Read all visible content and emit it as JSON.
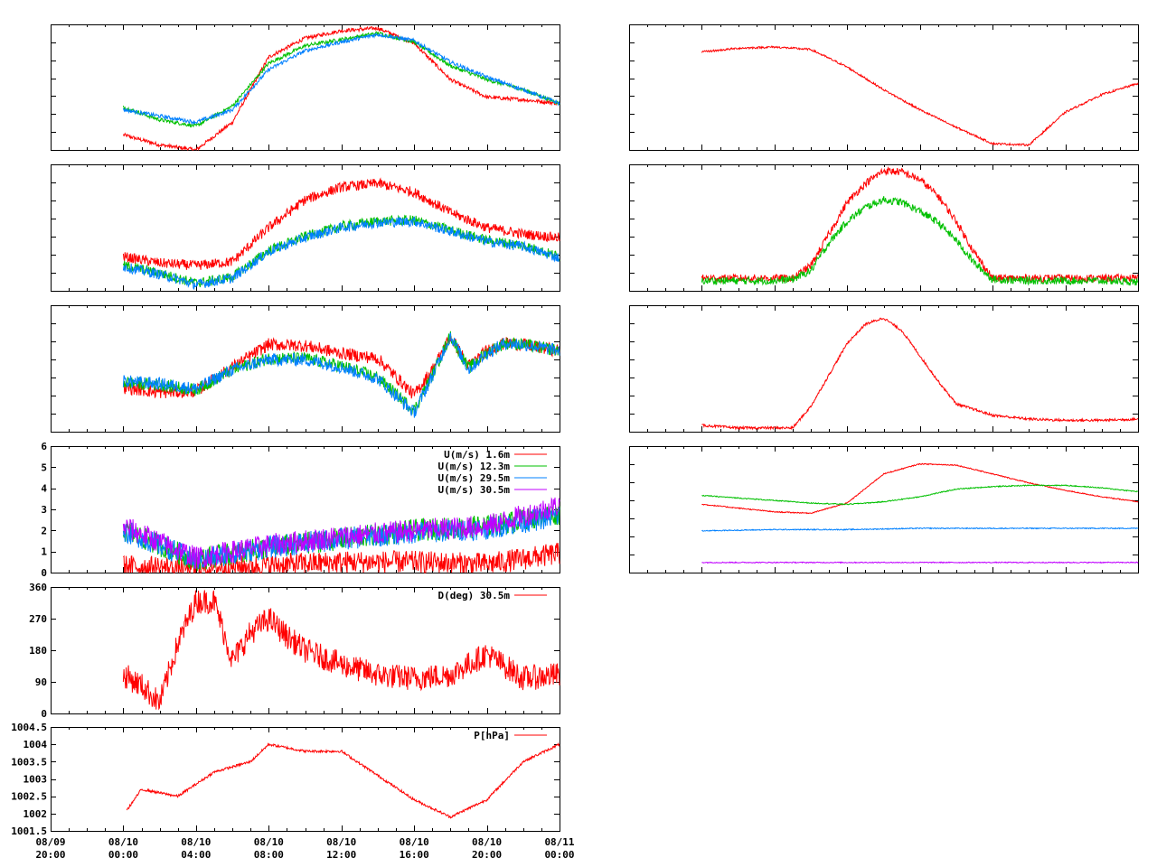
{
  "x_ticks": [
    {
      "d": "08/09",
      "t": "20:00"
    },
    {
      "d": "08/10",
      "t": "00:00"
    },
    {
      "d": "08/10",
      "t": "04:00"
    },
    {
      "d": "08/10",
      "t": "08:00"
    },
    {
      "d": "08/10",
      "t": "12:00"
    },
    {
      "d": "08/10",
      "t": "16:00"
    },
    {
      "d": "08/10",
      "t": "20:00"
    },
    {
      "d": "08/11",
      "t": "00:00"
    }
  ],
  "colors": {
    "red": "#ff0000",
    "green": "#00c000",
    "blue": "#0080ff",
    "purple": "#c000ff"
  },
  "chart_data": [
    {
      "id": "L1",
      "type": "line",
      "x_range": [
        "08/09 20:00",
        "08/11 00:00"
      ],
      "y_labels": [],
      "series": [
        {
          "color": "red",
          "x": [
            4,
            6,
            8,
            10,
            12,
            14,
            16,
            18,
            20,
            22,
            24,
            26,
            28
          ],
          "values": [
            0.12,
            0.04,
            0.0,
            0.22,
            0.74,
            0.89,
            0.95,
            0.97,
            0.85,
            0.56,
            0.42,
            0.4,
            0.37
          ]
        },
        {
          "color": "green",
          "x": [
            4,
            6,
            8,
            10,
            12,
            14,
            16,
            18,
            20,
            22,
            24,
            26,
            28
          ],
          "values": [
            0.34,
            0.24,
            0.19,
            0.35,
            0.69,
            0.83,
            0.88,
            0.93,
            0.86,
            0.67,
            0.56,
            0.48,
            0.37
          ]
        },
        {
          "color": "blue",
          "x": [
            4,
            6,
            8,
            10,
            12,
            14,
            16,
            18,
            20,
            22,
            24,
            26,
            28
          ],
          "values": [
            0.32,
            0.27,
            0.22,
            0.32,
            0.64,
            0.79,
            0.86,
            0.92,
            0.87,
            0.7,
            0.58,
            0.48,
            0.37
          ]
        }
      ]
    },
    {
      "id": "L2",
      "type": "line",
      "x_range": [
        "08/09 20:00",
        "08/11 00:00"
      ],
      "y_labels": [],
      "series": [
        {
          "color": "red",
          "x": [
            4,
            6,
            8,
            10,
            12,
            14,
            16,
            18,
            20,
            22,
            24,
            26,
            28
          ],
          "values": [
            0.27,
            0.22,
            0.2,
            0.23,
            0.5,
            0.72,
            0.82,
            0.85,
            0.78,
            0.62,
            0.5,
            0.45,
            0.42
          ]
        },
        {
          "color": "green",
          "x": [
            4,
            6,
            8,
            10,
            12,
            14,
            16,
            18,
            20,
            22,
            24,
            26,
            28
          ],
          "values": [
            0.2,
            0.14,
            0.06,
            0.11,
            0.32,
            0.43,
            0.51,
            0.55,
            0.56,
            0.48,
            0.4,
            0.36,
            0.27
          ]
        },
        {
          "color": "blue",
          "x": [
            4,
            6,
            8,
            10,
            12,
            14,
            16,
            18,
            20,
            22,
            24,
            26,
            28
          ],
          "values": [
            0.19,
            0.13,
            0.05,
            0.1,
            0.31,
            0.42,
            0.5,
            0.54,
            0.55,
            0.47,
            0.39,
            0.35,
            0.26
          ]
        }
      ]
    },
    {
      "id": "L3",
      "type": "line",
      "x_range": [
        "08/09 20:00",
        "08/11 00:00"
      ],
      "y_labels": [],
      "series": [
        {
          "color": "red",
          "x": [
            4,
            6,
            8,
            10,
            12,
            14,
            16,
            18,
            20,
            21,
            22,
            23,
            24,
            25,
            26,
            28
          ],
          "values": [
            0.35,
            0.31,
            0.32,
            0.51,
            0.69,
            0.68,
            0.62,
            0.58,
            0.29,
            0.49,
            0.75,
            0.52,
            0.64,
            0.7,
            0.69,
            0.64
          ]
        },
        {
          "color": "green",
          "x": [
            4,
            6,
            8,
            10,
            12,
            14,
            16,
            18,
            20,
            21,
            22,
            23,
            24,
            25,
            26,
            28
          ],
          "values": [
            0.39,
            0.37,
            0.33,
            0.49,
            0.58,
            0.58,
            0.52,
            0.43,
            0.17,
            0.45,
            0.76,
            0.5,
            0.63,
            0.7,
            0.69,
            0.64
          ]
        },
        {
          "color": "blue",
          "x": [
            4,
            6,
            8,
            10,
            12,
            14,
            16,
            18,
            20,
            21,
            22,
            23,
            24,
            25,
            26,
            28
          ],
          "values": [
            0.4,
            0.38,
            0.34,
            0.49,
            0.57,
            0.57,
            0.51,
            0.42,
            0.15,
            0.44,
            0.76,
            0.49,
            0.62,
            0.7,
            0.69,
            0.64
          ]
        }
      ]
    },
    {
      "id": "L4",
      "type": "line",
      "x_range": [
        "08/09 20:00",
        "08/11 00:00"
      ],
      "y_labels": [
        "0",
        "1",
        "2",
        "3",
        "4",
        "5",
        "6"
      ],
      "ylim": [
        0,
        6
      ],
      "series": [
        {
          "name": "U(m/s)  1.6m",
          "color": "red",
          "x": [
            4,
            8,
            12,
            16,
            20,
            24,
            28
          ],
          "values": [
            0.3,
            0.2,
            0.35,
            0.5,
            0.5,
            0.4,
            0.9
          ]
        },
        {
          "name": "U(m/s) 12.3m",
          "color": "green",
          "x": [
            4,
            8,
            12,
            16,
            20,
            24,
            28
          ],
          "values": [
            2.0,
            0.6,
            1.2,
            1.6,
            2.0,
            2.2,
            2.8
          ]
        },
        {
          "name": "U(m/s) 29.5m",
          "color": "blue",
          "x": [
            4,
            8,
            12,
            16,
            20,
            24,
            28
          ],
          "values": [
            2.0,
            0.6,
            1.2,
            1.6,
            1.9,
            2.1,
            2.7
          ]
        },
        {
          "name": "U(m/s) 30.5m",
          "color": "purple",
          "x": [
            4,
            8,
            12,
            16,
            20,
            24,
            28
          ],
          "values": [
            2.2,
            0.7,
            1.3,
            1.7,
            2.0,
            2.2,
            3.2
          ]
        }
      ]
    },
    {
      "id": "L5",
      "type": "line",
      "x_range": [
        "08/09 20:00",
        "08/11 00:00"
      ],
      "y_labels": [
        "0",
        "90",
        "180",
        "270",
        "360"
      ],
      "ylim": [
        0,
        360
      ],
      "series": [
        {
          "name": "D(deg)  30.5m",
          "color": "red",
          "x": [
            4,
            5,
            6,
            7,
            8,
            9,
            10,
            11,
            12,
            13,
            14,
            16,
            18,
            20,
            22,
            24,
            26,
            28
          ],
          "values": [
            110,
            80,
            30,
            200,
            320,
            320,
            150,
            230,
            270,
            220,
            180,
            140,
            110,
            100,
            110,
            170,
            100,
            110
          ]
        }
      ]
    },
    {
      "id": "L6",
      "type": "line",
      "x_range": [
        "08/09 20:00",
        "08/11 00:00"
      ],
      "y_labels": [
        "1001.5",
        "1002",
        "1002.5",
        "1003",
        "1003.5",
        "1004",
        "1004.5"
      ],
      "ylim": [
        1001.5,
        1004.5
      ],
      "series": [
        {
          "name": "P[hPa]",
          "color": "red",
          "x": [
            4.2,
            5,
            7,
            9,
            11,
            12,
            14,
            16,
            18,
            20,
            22,
            24,
            26,
            28
          ],
          "values": [
            1002.1,
            1002.7,
            1002.5,
            1003.2,
            1003.5,
            1004.0,
            1003.8,
            1003.8,
            1003.1,
            1002.4,
            1001.9,
            1002.4,
            1003.5,
            1004.0
          ]
        }
      ]
    },
    {
      "id": "R1",
      "type": "line",
      "x_range": [
        "08/09 20:00",
        "08/11 00:00"
      ],
      "y_labels": [],
      "series": [
        {
          "color": "red",
          "x": [
            4,
            6,
            8,
            10,
            12,
            14,
            16,
            18,
            20,
            22,
            24,
            26,
            28
          ],
          "values": [
            0.78,
            0.81,
            0.82,
            0.8,
            0.66,
            0.48,
            0.32,
            0.18,
            0.05,
            0.04,
            0.3,
            0.44,
            0.53
          ]
        }
      ]
    },
    {
      "id": "R2",
      "type": "line",
      "x_range": [
        "08/09 20:00",
        "08/11 00:00"
      ],
      "y_labels": [],
      "series": [
        {
          "color": "red",
          "x": [
            4,
            6,
            8,
            9,
            10,
            11,
            12,
            13,
            14,
            15,
            16,
            17,
            18,
            19,
            20,
            22,
            24,
            26,
            28
          ],
          "values": [
            0.1,
            0.1,
            0.1,
            0.1,
            0.2,
            0.45,
            0.7,
            0.85,
            0.95,
            0.94,
            0.88,
            0.75,
            0.55,
            0.3,
            0.1,
            0.1,
            0.1,
            0.1,
            0.1
          ]
        },
        {
          "color": "green",
          "x": [
            4,
            6,
            8,
            9,
            10,
            11,
            12,
            13,
            14,
            15,
            16,
            17,
            18,
            19,
            20,
            22,
            24,
            26,
            28
          ],
          "values": [
            0.08,
            0.08,
            0.08,
            0.09,
            0.16,
            0.38,
            0.55,
            0.66,
            0.72,
            0.7,
            0.63,
            0.54,
            0.4,
            0.22,
            0.09,
            0.08,
            0.08,
            0.08,
            0.07
          ]
        }
      ]
    },
    {
      "id": "R3",
      "type": "line",
      "x_range": [
        "08/09 20:00",
        "08/11 00:00"
      ],
      "y_labels": [],
      "series": [
        {
          "color": "red",
          "x": [
            4,
            5,
            6,
            8,
            9,
            10,
            11,
            12,
            13,
            14,
            15,
            16,
            17,
            18,
            20,
            22,
            24,
            26,
            28
          ],
          "values": [
            0.05,
            0.04,
            0.03,
            0.03,
            0.03,
            0.2,
            0.45,
            0.7,
            0.85,
            0.9,
            0.8,
            0.6,
            0.4,
            0.22,
            0.13,
            0.1,
            0.09,
            0.09,
            0.1
          ]
        }
      ]
    },
    {
      "id": "R4",
      "type": "line",
      "x_range": [
        "08/09 20:00",
        "08/11 00:00"
      ],
      "y_labels": [],
      "series": [
        {
          "color": "red",
          "x": [
            4,
            6,
            8,
            10,
            12,
            14,
            16,
            18,
            20,
            22,
            24,
            26,
            28
          ],
          "values": [
            0.54,
            0.51,
            0.48,
            0.47,
            0.55,
            0.78,
            0.86,
            0.85,
            0.78,
            0.71,
            0.65,
            0.6,
            0.56
          ]
        },
        {
          "color": "green",
          "x": [
            4,
            6,
            8,
            10,
            12,
            14,
            16,
            18,
            20,
            22,
            24,
            26,
            28
          ],
          "values": [
            0.61,
            0.59,
            0.57,
            0.55,
            0.54,
            0.56,
            0.6,
            0.66,
            0.68,
            0.69,
            0.69,
            0.67,
            0.64
          ]
        },
        {
          "color": "blue",
          "x": [
            4,
            8,
            12,
            16,
            20,
            24,
            28
          ],
          "values": [
            0.33,
            0.34,
            0.34,
            0.35,
            0.35,
            0.35,
            0.35
          ]
        },
        {
          "color": "purple",
          "x": [
            4,
            8,
            12,
            16,
            20,
            24,
            28
          ],
          "values": [
            0.08,
            0.08,
            0.08,
            0.08,
            0.08,
            0.08,
            0.08
          ]
        }
      ]
    }
  ]
}
